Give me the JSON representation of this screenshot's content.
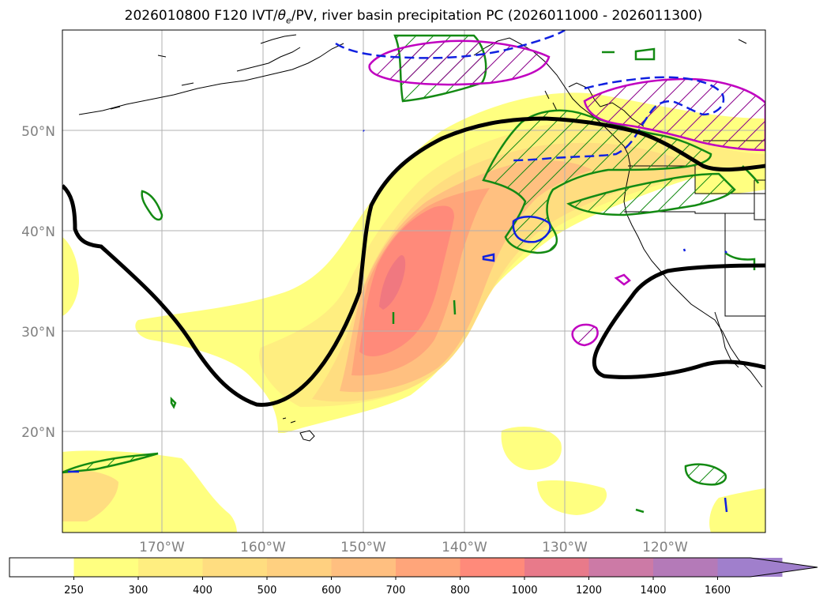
{
  "title_parts": {
    "prefix": "2026010800 F120 IVT/",
    "theta": "θ",
    "sub": "e",
    "suffix": "/PV, river basin precipitation PC (2026011000 - 2026011300)"
  },
  "axes": {
    "lat_labels": [
      "50°N",
      "40°N",
      "30°N",
      "20°N"
    ],
    "lon_labels": [
      "170°W",
      "160°W",
      "150°W",
      "140°W",
      "130°W",
      "120°W"
    ]
  },
  "colorbar": {
    "labels": [
      "250",
      "300",
      "400",
      "500",
      "600",
      "700",
      "800",
      "1000",
      "1200",
      "1400",
      "1600"
    ],
    "colors": [
      "#ffffff",
      "#ffff80",
      "#ffee80",
      "#ffdd80",
      "#ffd080",
      "#ffbf80",
      "#ffa57a",
      "#ff8a7a",
      "#e87a8a",
      "#cc7aa6",
      "#b47ab8",
      "#a07fcc"
    ]
  },
  "layer_colors": {
    "ivt_low": "#ffff80",
    "ivt_mid": "#ffd880",
    "ivt_high": "#ffa57a",
    "ivt_core": "#ff8a7a",
    "pv_contour": "#000000",
    "theta_e_green": "#138a13",
    "blue_contour": "#1020e0",
    "magenta_contour": "#c000c0",
    "grid": "#b0b0b0"
  }
}
